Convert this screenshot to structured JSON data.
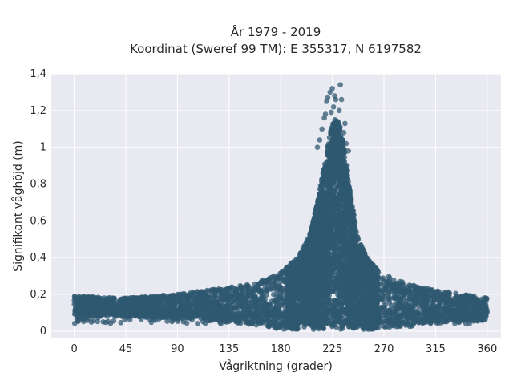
{
  "chart_data": {
    "type": "scatter",
    "title_line1": "År 1979 - 2019",
    "title_line2": "Koordinat (Sweref 99 TM): E 355317, N 6197582",
    "xlabel": "Vågriktning (grader)",
    "ylabel": "Signifikant våghöjd (m)",
    "xlim": [
      -20,
      372
    ],
    "ylim": [
      -0.04,
      1.4
    ],
    "xticks": [
      0,
      45,
      90,
      135,
      180,
      225,
      270,
      315,
      360
    ],
    "xtick_labels": [
      "0",
      "45",
      "90",
      "135",
      "180",
      "225",
      "270",
      "315",
      "360"
    ],
    "yticks": [
      0,
      0.2,
      0.4,
      0.6,
      0.8,
      1.0,
      1.2,
      1.4
    ],
    "ytick_labels": [
      "0",
      "0,2",
      "0,4",
      "0,6",
      "0,8",
      "1",
      "1,2",
      "1,4"
    ],
    "grid": true,
    "colors": {
      "points": "#2f5870",
      "plot_bg": "#e9e9f1",
      "grid": "#ffffff"
    },
    "series": [
      {
        "envelope_upper": [
          [
            0,
            0.19
          ],
          [
            45,
            0.18
          ],
          [
            90,
            0.2
          ],
          [
            135,
            0.24
          ],
          [
            160,
            0.27
          ],
          [
            180,
            0.32
          ],
          [
            195,
            0.4
          ],
          [
            205,
            0.52
          ],
          [
            212,
            0.7
          ],
          [
            218,
            0.9
          ],
          [
            222,
            1.05
          ],
          [
            226,
            1.15
          ],
          [
            230,
            1.16
          ],
          [
            234,
            1.05
          ],
          [
            238,
            0.9
          ],
          [
            242,
            0.7
          ],
          [
            248,
            0.5
          ],
          [
            255,
            0.4
          ],
          [
            265,
            0.33
          ],
          [
            280,
            0.28
          ],
          [
            300,
            0.24
          ],
          [
            330,
            0.21
          ],
          [
            360,
            0.18
          ]
        ],
        "envelope_lower": [
          [
            0,
            0.08
          ],
          [
            45,
            0.08
          ],
          [
            90,
            0.07
          ],
          [
            135,
            0.05
          ],
          [
            160,
            0.03
          ],
          [
            180,
            0.01
          ],
          [
            225,
            0.01
          ],
          [
            270,
            0.01
          ],
          [
            300,
            0.03
          ],
          [
            330,
            0.05
          ],
          [
            360,
            0.06
          ]
        ],
        "outliers": [
          [
            223,
            1.3
          ],
          [
            225,
            1.32
          ],
          [
            232,
            1.34
          ],
          [
            220,
            1.25
          ],
          [
            228,
            1.26
          ],
          [
            226,
            1.22
          ],
          [
            233,
            1.26
          ],
          [
            219,
            1.18
          ],
          [
            231,
            1.2
          ],
          [
            224,
            1.19
          ],
          [
            236,
            1.13
          ],
          [
            216,
            1.1
          ],
          [
            229,
            1.12
          ],
          [
            218,
            1.16
          ],
          [
            235,
            1.08
          ],
          [
            212,
            1.0
          ],
          [
            239,
            0.98
          ],
          [
            214,
            1.04
          ],
          [
            237,
            1.02
          ],
          [
            221,
            1.27
          ],
          [
            227,
            1.28
          ]
        ]
      }
    ]
  }
}
